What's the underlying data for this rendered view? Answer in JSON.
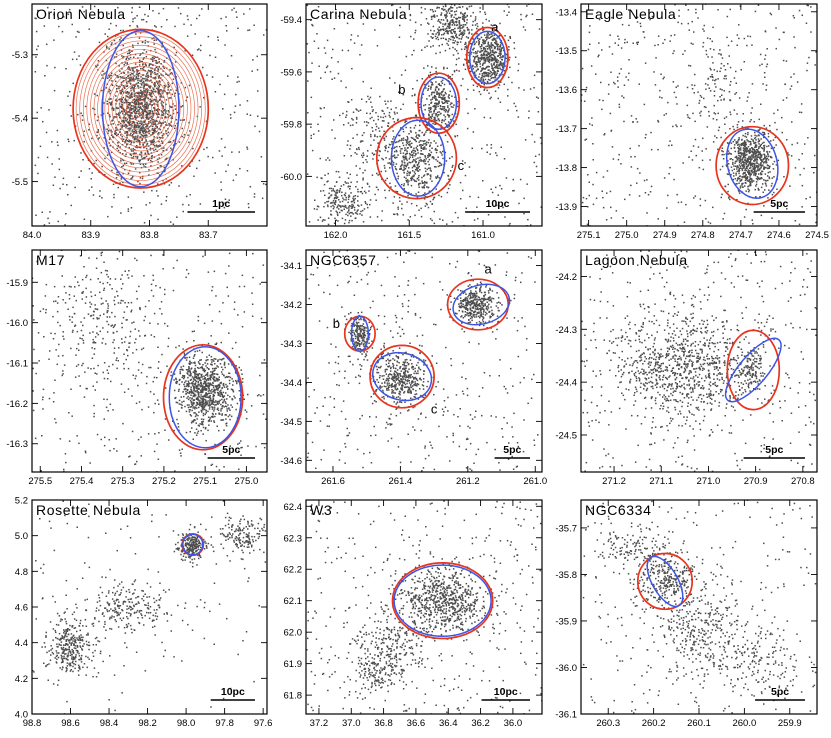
{
  "colors": {
    "red_ellipse": "#e8341c",
    "blue_ellipse": "#3d55e6",
    "stars": "#4d4d4d"
  },
  "chart_data": [
    {
      "type": "scatter",
      "title": "Orion Nebula",
      "xlim": [
        84.0,
        83.6
      ],
      "ylim": [
        -5.57,
        -5.22
      ],
      "xticks": [
        84.0,
        83.9,
        83.8,
        83.7
      ],
      "xticklabels": [
        "84.0",
        "83.9",
        "83.8",
        "83.7"
      ],
      "yticks": [
        -5.3,
        -5.4,
        -5.5
      ],
      "yticklabels": [
        "-5.3",
        "-5.4",
        "-5.5"
      ],
      "scale_bar": {
        "label": "1pc",
        "length": 0.115
      },
      "clusters": [
        {
          "x": 83.815,
          "y": -5.385,
          "n": 1400,
          "sx": 0.03,
          "sy": 0.05
        }
      ],
      "field_stars": 350,
      "ellipses": [
        {
          "color": "red",
          "cx": 83.815,
          "cy": -5.385,
          "rx": 0.115,
          "ry": 0.125,
          "angle": 0
        },
        {
          "color": "blue",
          "cx": 83.815,
          "cy": -5.385,
          "rx": 0.065,
          "ry": 0.123,
          "angle": 0
        }
      ],
      "contours": {
        "cx": 83.815,
        "cy": -5.385,
        "rx": 0.11,
        "ry": 0.12,
        "count": 18
      },
      "labels": []
    },
    {
      "type": "scatter",
      "title": "Carina Nebula",
      "xlim": [
        162.2,
        160.6
      ],
      "ylim": [
        -60.19,
        -59.34
      ],
      "xticks": [
        162.0,
        161.5,
        161.0
      ],
      "xticklabels": [
        "162.0",
        "161.5",
        "161.0"
      ],
      "yticks": [
        -59.4,
        -59.6,
        -59.8,
        -60.0
      ],
      "yticklabels": [
        "-59.4",
        "-59.6",
        "-59.8",
        "-60.0"
      ],
      "scale_bar": {
        "label": "10pc",
        "length": 0.44
      },
      "clusters": [
        {
          "x": 160.97,
          "y": -59.55,
          "n": 500,
          "sx": 0.07,
          "sy": 0.055
        },
        {
          "x": 161.3,
          "y": -59.72,
          "n": 280,
          "sx": 0.06,
          "sy": 0.06
        },
        {
          "x": 161.45,
          "y": -59.95,
          "n": 420,
          "sx": 0.1,
          "sy": 0.08
        },
        {
          "x": 161.2,
          "y": -59.42,
          "n": 300,
          "sx": 0.08,
          "sy": 0.05
        },
        {
          "x": 161.95,
          "y": -60.1,
          "n": 180,
          "sx": 0.08,
          "sy": 0.04
        },
        {
          "x": 161.7,
          "y": -59.85,
          "n": 160,
          "sx": 0.12,
          "sy": 0.08
        }
      ],
      "field_stars": 420,
      "ellipses": [
        {
          "color": "red",
          "cx": 160.97,
          "cy": -59.545,
          "rx": 0.14,
          "ry": 0.115,
          "angle": 0
        },
        {
          "color": "blue",
          "cx": 160.97,
          "cy": -59.545,
          "rx": 0.12,
          "ry": 0.1,
          "angle": 0
        },
        {
          "color": "red",
          "cx": 161.3,
          "cy": -59.72,
          "rx": 0.14,
          "ry": 0.115,
          "angle": 0
        },
        {
          "color": "blue",
          "cx": 161.3,
          "cy": -59.72,
          "rx": 0.12,
          "ry": 0.1,
          "angle": 0
        },
        {
          "color": "red",
          "cx": 161.45,
          "cy": -59.93,
          "rx": 0.27,
          "ry": 0.155,
          "angle": 0
        },
        {
          "color": "blue",
          "cx": 161.44,
          "cy": -59.93,
          "rx": 0.18,
          "ry": 0.145,
          "angle": 0
        }
      ],
      "labels": [
        {
          "text": "a",
          "x": 160.92,
          "y": -59.43
        },
        {
          "text": "b",
          "x": 161.55,
          "y": -59.67
        },
        {
          "text": "c",
          "x": 161.15,
          "y": -59.96
        }
      ]
    },
    {
      "type": "scatter",
      "title": "Eagle Nebula",
      "xlim": [
        275.12,
        274.5
      ],
      "ylim": [
        -13.95,
        -13.38
      ],
      "xticks": [
        275.1,
        275.0,
        274.9,
        274.8,
        274.7,
        274.6,
        274.5
      ],
      "xticklabels": [
        "275.1",
        "275.0",
        "274.9",
        "274.8",
        "274.7",
        "274.6",
        "274.5"
      ],
      "yticks": [
        -13.4,
        -13.5,
        -13.6,
        -13.7,
        -13.8,
        -13.9
      ],
      "yticklabels": [
        "-13.4",
        "-13.5",
        "-13.6",
        "-13.7",
        "-13.8",
        "-13.9"
      ],
      "scale_bar": {
        "label": "5pc",
        "length": 0.135
      },
      "clusters": [
        {
          "x": 274.675,
          "y": -13.78,
          "n": 650,
          "sx": 0.03,
          "sy": 0.04
        },
        {
          "x": 274.77,
          "y": -13.6,
          "n": 80,
          "sx": 0.03,
          "sy": 0.06
        }
      ],
      "field_stars": 450,
      "ellipses": [
        {
          "color": "red",
          "cx": 274.67,
          "cy": -13.795,
          "rx": 0.095,
          "ry": 0.1,
          "angle": 0
        },
        {
          "color": "blue",
          "cx": 274.67,
          "cy": -13.79,
          "rx": 0.065,
          "ry": 0.09,
          "angle": -15
        }
      ],
      "labels": []
    },
    {
      "type": "scatter",
      "title": "M17",
      "xlim": [
        275.52,
        274.95
      ],
      "ylim": [
        -16.37,
        -15.82
      ],
      "xticks": [
        275.5,
        275.4,
        275.3,
        275.2,
        275.1,
        275.0
      ],
      "xticklabels": [
        "275.5",
        "275.4",
        "275.3",
        "275.2",
        "275.1",
        "275.0"
      ],
      "yticks": [
        -15.9,
        -16.0,
        -16.1,
        -16.2,
        -16.3
      ],
      "yticklabels": [
        "-15.9",
        "-16.0",
        "-16.1",
        "-16.2",
        "-16.3"
      ],
      "scale_bar": {
        "label": "5pc",
        "length": 0.115
      },
      "clusters": [
        {
          "x": 275.1,
          "y": -16.17,
          "n": 800,
          "sx": 0.035,
          "sy": 0.045
        },
        {
          "x": 275.35,
          "y": -16.0,
          "n": 200,
          "sx": 0.06,
          "sy": 0.07
        }
      ],
      "field_stars": 380,
      "ellipses": [
        {
          "color": "red",
          "cx": 275.105,
          "cy": -16.185,
          "rx": 0.096,
          "ry": 0.13,
          "angle": 0
        },
        {
          "color": "blue",
          "cx": 275.1,
          "cy": -16.185,
          "rx": 0.087,
          "ry": 0.125,
          "angle": 0
        }
      ],
      "labels": []
    },
    {
      "type": "scatter",
      "title": "NGC6357",
      "xlim": [
        261.68,
        260.98
      ],
      "ylim": [
        -34.63,
        -34.06
      ],
      "xticks": [
        261.6,
        261.4,
        261.2,
        261.0
      ],
      "xticklabels": [
        "261.6",
        "261.4",
        "261.2",
        "261.0"
      ],
      "yticks": [
        -34.1,
        -34.2,
        -34.3,
        -34.4,
        -34.5,
        -34.6
      ],
      "yticklabels": [
        "-34.1",
        "-34.2",
        "-34.3",
        "-34.4",
        "-34.5",
        "-34.6"
      ],
      "scale_bar": {
        "label": "5pc",
        "length": 0.105
      },
      "clusters": [
        {
          "x": 261.18,
          "y": -34.2,
          "n": 350,
          "sx": 0.03,
          "sy": 0.025
        },
        {
          "x": 261.52,
          "y": -34.28,
          "n": 200,
          "sx": 0.015,
          "sy": 0.025
        },
        {
          "x": 261.4,
          "y": -34.39,
          "n": 420,
          "sx": 0.04,
          "sy": 0.035
        }
      ],
      "field_stars": 380,
      "ellipses": [
        {
          "color": "red",
          "cx": 261.17,
          "cy": -34.2,
          "rx": 0.09,
          "ry": 0.065,
          "angle": 0
        },
        {
          "color": "blue",
          "cx": 261.16,
          "cy": -34.2,
          "rx": 0.085,
          "ry": 0.05,
          "angle": -15
        },
        {
          "color": "red",
          "cx": 261.52,
          "cy": -34.275,
          "rx": 0.045,
          "ry": 0.045,
          "angle": 0
        },
        {
          "color": "blue",
          "cx": 261.52,
          "cy": -34.275,
          "rx": 0.025,
          "ry": 0.045,
          "angle": 0
        },
        {
          "color": "red",
          "cx": 261.395,
          "cy": -34.385,
          "rx": 0.095,
          "ry": 0.08,
          "angle": 0
        },
        {
          "color": "blue",
          "cx": 261.395,
          "cy": -34.385,
          "rx": 0.088,
          "ry": 0.06,
          "angle": 15
        }
      ],
      "labels": [
        {
          "text": "a",
          "x": 261.14,
          "y": -34.11
        },
        {
          "text": "b",
          "x": 261.59,
          "y": -34.25
        },
        {
          "text": "c",
          "x": 261.3,
          "y": -34.47
        }
      ]
    },
    {
      "type": "scatter",
      "title": "Lagoon Nebula",
      "xlim": [
        271.27,
        270.77
      ],
      "ylim": [
        -24.57,
        -24.15
      ],
      "xticks": [
        271.2,
        271.1,
        271.0,
        270.9,
        270.8
      ],
      "xticklabels": [
        "271.2",
        "271.1",
        "271.0",
        "270.9",
        "270.8"
      ],
      "yticks": [
        -24.2,
        -24.3,
        -24.4,
        -24.5
      ],
      "yticklabels": [
        "-24.2",
        "-24.3",
        "-24.4",
        "-24.5"
      ],
      "scale_bar": {
        "label": "5pc",
        "length": 0.13
      },
      "clusters": [
        {
          "x": 271.05,
          "y": -24.37,
          "n": 900,
          "sx": 0.075,
          "sy": 0.05
        },
        {
          "x": 270.91,
          "y": -24.37,
          "n": 120,
          "sx": 0.015,
          "sy": 0.02
        }
      ],
      "field_stars": 380,
      "ellipses": [
        {
          "color": "red",
          "cx": 270.905,
          "cy": -24.377,
          "rx": 0.055,
          "ry": 0.075,
          "angle": 0
        },
        {
          "color": "blue",
          "cx": 270.905,
          "cy": -24.377,
          "rx": 0.03,
          "ry": 0.075,
          "angle": 40
        }
      ],
      "labels": []
    },
    {
      "type": "scatter",
      "title": "Rosette Nebula",
      "xlim": [
        98.8,
        97.58
      ],
      "ylim": [
        4.0,
        5.2
      ],
      "xticks": [
        98.8,
        98.6,
        98.4,
        98.2,
        98.0,
        97.8,
        97.6
      ],
      "xticklabels": [
        "98.8",
        "98.6",
        "98.4",
        "98.2",
        "98.0",
        "97.8",
        "97.6"
      ],
      "yticks": [
        4.0,
        4.2,
        4.4,
        4.6,
        4.8,
        5.0,
        5.2
      ],
      "yticklabels": [
        "4.0",
        "4.2",
        "4.4",
        "4.6",
        "4.8",
        "5.0",
        "5.2"
      ],
      "scale_bar": {
        "label": "10pc",
        "length": 0.23
      },
      "clusters": [
        {
          "x": 97.97,
          "y": 4.94,
          "n": 220,
          "sx": 0.035,
          "sy": 0.04
        },
        {
          "x": 98.6,
          "y": 4.38,
          "n": 320,
          "sx": 0.06,
          "sy": 0.08
        },
        {
          "x": 98.3,
          "y": 4.6,
          "n": 220,
          "sx": 0.1,
          "sy": 0.07
        },
        {
          "x": 97.7,
          "y": 5.0,
          "n": 150,
          "sx": 0.07,
          "sy": 0.05
        }
      ],
      "field_stars": 120,
      "ellipses": [
        {
          "color": "red",
          "cx": 97.965,
          "cy": 4.95,
          "rx": 0.055,
          "ry": 0.06,
          "angle": 0
        },
        {
          "color": "blue",
          "cx": 97.965,
          "cy": 4.95,
          "rx": 0.052,
          "ry": 0.057,
          "angle": 0
        }
      ],
      "labels": []
    },
    {
      "type": "scatter",
      "title": "W3",
      "xlim": [
        37.28,
        35.82
      ],
      "ylim": [
        61.74,
        62.42
      ],
      "xticks": [
        37.2,
        37.0,
        36.8,
        36.6,
        36.4,
        36.2,
        36.0
      ],
      "xticklabels": [
        "37.2",
        "37.0",
        "36.8",
        "36.6",
        "36.4",
        "36.2",
        "36.0"
      ],
      "yticks": [
        61.8,
        61.9,
        62.0,
        62.1,
        62.2,
        62.3,
        62.4
      ],
      "yticklabels": [
        "61.8",
        "61.9",
        "62.0",
        "62.1",
        "62.2",
        "62.3",
        "62.4"
      ],
      "scale_bar": {
        "label": "10pc",
        "length": 0.3
      },
      "clusters": [
        {
          "x": 36.42,
          "y": 62.1,
          "n": 650,
          "sx": 0.13,
          "sy": 0.05
        },
        {
          "x": 36.75,
          "y": 61.95,
          "n": 250,
          "sx": 0.1,
          "sy": 0.06
        },
        {
          "x": 36.85,
          "y": 61.87,
          "n": 100,
          "sx": 0.06,
          "sy": 0.03
        }
      ],
      "field_stars": 380,
      "ellipses": [
        {
          "color": "red",
          "cx": 36.435,
          "cy": 62.1,
          "rx": 0.31,
          "ry": 0.12,
          "angle": 0
        },
        {
          "color": "blue",
          "cx": 36.435,
          "cy": 62.1,
          "rx": 0.3,
          "ry": 0.113,
          "angle": 0
        }
      ],
      "labels": []
    },
    {
      "type": "scatter",
      "title": "NGC6334",
      "xlim": [
        260.36,
        259.84
      ],
      "ylim": [
        -36.1,
        -35.64
      ],
      "xticks": [
        260.3,
        260.2,
        260.1,
        260.0,
        259.9
      ],
      "xticklabels": [
        "260.3",
        "260.2",
        "260.1",
        "260.0",
        "259.9"
      ],
      "yticks": [
        -35.7,
        -35.8,
        -35.9,
        -36.0,
        -36.1
      ],
      "yticklabels": [
        "-35.7",
        "-35.8",
        "-35.9",
        "-36.0",
        "-36.1"
      ],
      "scale_bar": {
        "label": "5pc",
        "length": 0.11
      },
      "clusters": [
        {
          "x": 260.17,
          "y": -35.81,
          "n": 280,
          "sx": 0.035,
          "sy": 0.03
        },
        {
          "x": 260.1,
          "y": -35.92,
          "n": 320,
          "sx": 0.05,
          "sy": 0.045
        },
        {
          "x": 260.24,
          "y": -35.74,
          "n": 120,
          "sx": 0.04,
          "sy": 0.025
        },
        {
          "x": 259.98,
          "y": -35.99,
          "n": 160,
          "sx": 0.05,
          "sy": 0.04
        }
      ],
      "field_stars": 250,
      "ellipses": [
        {
          "color": "red",
          "cx": 260.175,
          "cy": -35.815,
          "rx": 0.06,
          "ry": 0.06,
          "angle": 0
        },
        {
          "color": "blue",
          "cx": 260.175,
          "cy": -35.815,
          "rx": 0.028,
          "ry": 0.06,
          "angle": -30
        }
      ],
      "labels": []
    }
  ]
}
